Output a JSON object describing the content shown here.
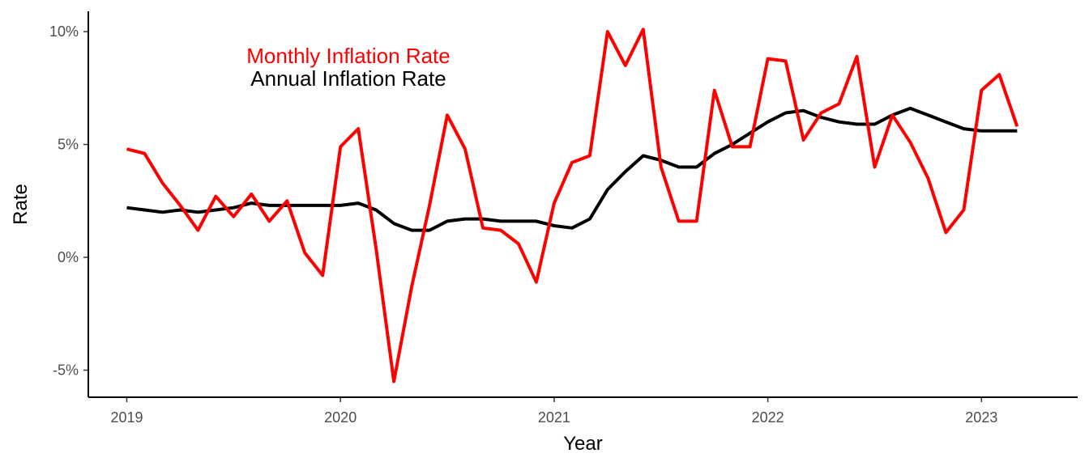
{
  "chart_data": {
    "type": "line",
    "xlabel": "Year",
    "ylabel": "Rate",
    "x_start": 2019,
    "x_step_months": 1,
    "xlim": [
      2018.82,
      2023.45
    ],
    "ylim": [
      -6.2,
      10.9
    ],
    "xticks": [
      {
        "value": 2019,
        "label": "2019"
      },
      {
        "value": 2020,
        "label": "2020"
      },
      {
        "value": 2021,
        "label": "2021"
      },
      {
        "value": 2022,
        "label": "2022"
      },
      {
        "value": 2023,
        "label": "2023"
      }
    ],
    "yticks": [
      {
        "value": -5,
        "label": "-5%"
      },
      {
        "value": 0,
        "label": "0%"
      },
      {
        "value": 5,
        "label": "5%"
      },
      {
        "value": 10,
        "label": "10%"
      }
    ],
    "grid": false,
    "legend_placement": "top-left",
    "series": [
      {
        "name": "Monthly Inflation Rate",
        "color": "#ff0000",
        "values": [
          4.8,
          4.6,
          3.3,
          2.3,
          1.2,
          2.7,
          1.8,
          2.8,
          1.6,
          2.5,
          0.2,
          -0.8,
          4.9,
          5.7,
          0.4,
          -5.5,
          -1.3,
          2.3,
          6.3,
          4.8,
          1.3,
          1.2,
          0.6,
          -1.1,
          2.4,
          4.2,
          4.5,
          10.0,
          8.5,
          10.1,
          4.0,
          1.6,
          1.6,
          7.4,
          4.9,
          4.9,
          8.8,
          8.7,
          5.2,
          6.4,
          6.8,
          8.9,
          4.0,
          6.3,
          5.1,
          3.5,
          1.1,
          2.1,
          7.4,
          8.1,
          5.8
        ]
      },
      {
        "name": "Annual Inflation Rate",
        "color": "#000000",
        "values": [
          2.2,
          2.1,
          2.0,
          2.1,
          2.0,
          2.1,
          2.2,
          2.4,
          2.3,
          2.3,
          2.3,
          2.3,
          2.3,
          2.4,
          2.1,
          1.5,
          1.2,
          1.2,
          1.6,
          1.7,
          1.7,
          1.6,
          1.6,
          1.6,
          1.4,
          1.3,
          1.7,
          3.0,
          3.8,
          4.5,
          4.3,
          4.0,
          4.0,
          4.6,
          5.0,
          5.5,
          6.0,
          6.4,
          6.5,
          6.2,
          6.0,
          5.9,
          5.9,
          6.3,
          6.6,
          6.3,
          6.0,
          5.7,
          5.6,
          5.6,
          5.6
        ]
      }
    ]
  }
}
